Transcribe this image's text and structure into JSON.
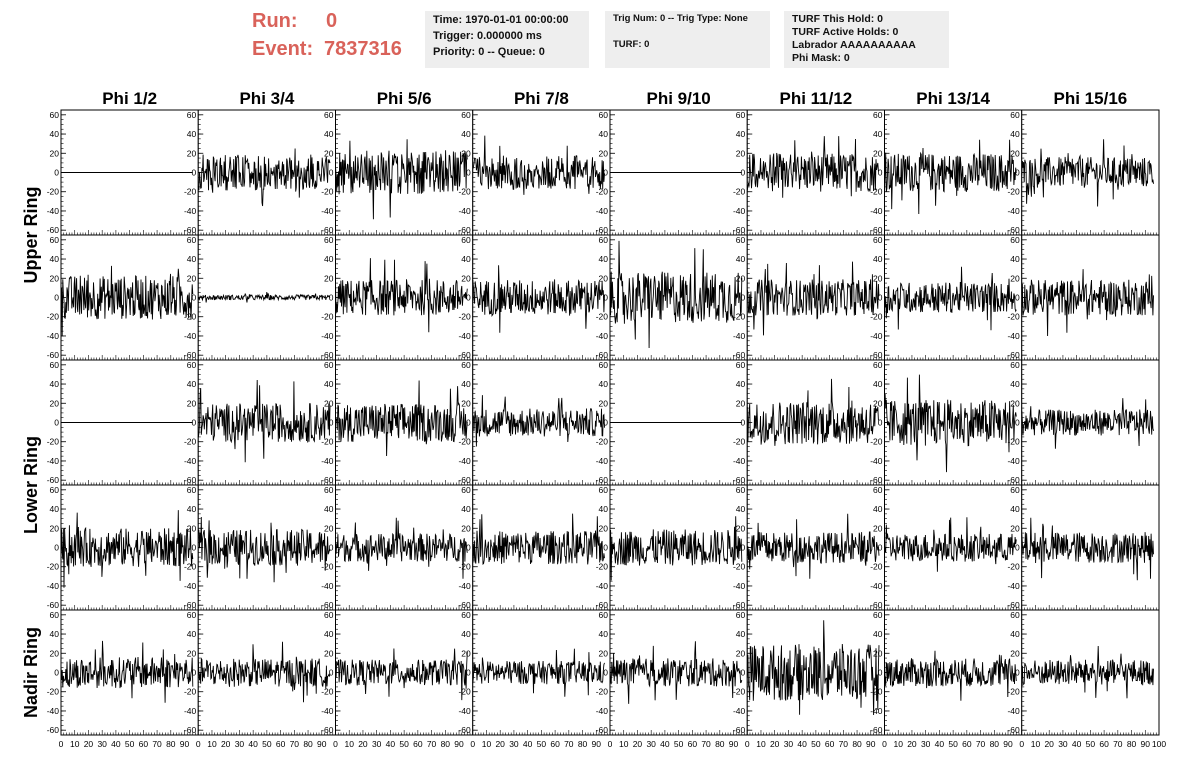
{
  "header": {
    "run_label": "Run:",
    "run_value": "0",
    "event_label": "Event:",
    "event_value": "7837316",
    "time_text": "Time: 1970-01-01 00:00:00",
    "trigger_text": "Trigger: 0.000000 ms",
    "priority_text": "Priority: 0 -- Queue: 0",
    "trig_text": "Trig Num: 0 -- Trig Type: None",
    "turf_text": "TURF: 0",
    "turf_hold_text": "TURF This Hold: 0",
    "turf_active_text": "TURF Active Holds: 0",
    "labrador_text": "Labrador AAAAAAAAAA",
    "phi_mask_text": "Phi Mask: 0"
  },
  "columns": [
    "Phi 1/2",
    "Phi 3/4",
    "Phi 5/6",
    "Phi 7/8",
    "Phi 9/10",
    "Phi 11/12",
    "Phi 13/14",
    "Phi 15/16"
  ],
  "ring_labels": [
    "Upper Ring",
    "Lower Ring",
    "Nadir Ring"
  ],
  "chart_data": {
    "type": "line",
    "rows": 5,
    "cols": 8,
    "xlim": [
      0,
      100
    ],
    "ylim": [
      -65,
      65
    ],
    "y_ticks": [
      "60",
      "40",
      "20",
      "0",
      "-20",
      "-40",
      "-60"
    ],
    "x_tick_labels": [
      "0",
      "10",
      "20",
      "30",
      "40",
      "50",
      "60",
      "70",
      "80",
      "90",
      "100"
    ],
    "amplitude_grid": [
      [
        0,
        14,
        17,
        13,
        0,
        15,
        15,
        12
      ],
      [
        17,
        2,
        14,
        14,
        20,
        14,
        12,
        14
      ],
      [
        0,
        15,
        15,
        11,
        0,
        17,
        18,
        10
      ],
      [
        15,
        14,
        11,
        13,
        14,
        12,
        11,
        12
      ],
      [
        12,
        11,
        10,
        9,
        11,
        22,
        11,
        10
      ]
    ],
    "line_color": "#000000"
  }
}
